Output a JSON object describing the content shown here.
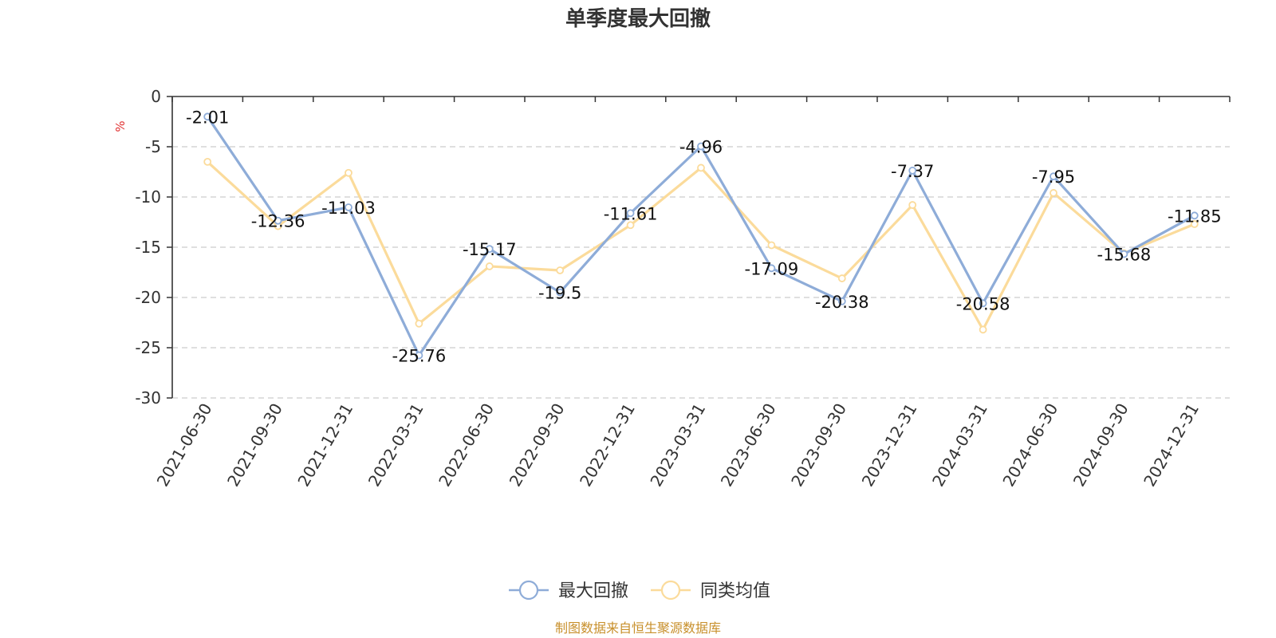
{
  "chart_data": {
    "type": "line",
    "title": "单季度最大回撤",
    "ylabel": "%",
    "ylim": [
      -30,
      0
    ],
    "yticks": [
      0,
      -5,
      -10,
      -15,
      -20,
      -25,
      -30
    ],
    "grid": true,
    "legend_position": "bottom-center",
    "categories": [
      "2021-06-30",
      "2021-09-30",
      "2021-12-31",
      "2022-03-31",
      "2022-06-30",
      "2022-09-30",
      "2022-12-31",
      "2023-03-31",
      "2023-06-30",
      "2023-09-30",
      "2023-12-31",
      "2024-03-31",
      "2024-06-30",
      "2024-09-30",
      "2024-12-31"
    ],
    "series": [
      {
        "name": "最大回撤",
        "color": "#8eacd8",
        "values": [
          -2.01,
          -12.36,
          -11.03,
          -25.76,
          -15.17,
          -19.5,
          -11.61,
          -4.96,
          -17.09,
          -20.38,
          -7.37,
          -20.58,
          -7.95,
          -15.68,
          -11.85
        ],
        "labels": [
          "-2.01",
          "-12.36",
          "-11.03",
          "-25.76",
          "-15.17",
          "-19.5",
          "-11.61",
          "-4.96",
          "-17.09",
          "-20.38",
          "-7.37",
          "-20.58",
          "-7.95",
          "-15.68",
          "-11.85"
        ]
      },
      {
        "name": "同类均值",
        "color": "#fbdb9b",
        "values": [
          -6.5,
          -12.9,
          -7.6,
          -22.6,
          -16.9,
          -17.3,
          -12.8,
          -7.1,
          -14.8,
          -18.1,
          -10.8,
          -23.2,
          -9.6,
          -15.6,
          -12.7
        ]
      }
    ]
  },
  "footer": {
    "source": "制图数据来自恒生聚源数据库",
    "source_color": "#c8902c"
  },
  "colors": {
    "unit": "#e03030",
    "axis": "#333333",
    "grid": "#cccccc"
  }
}
